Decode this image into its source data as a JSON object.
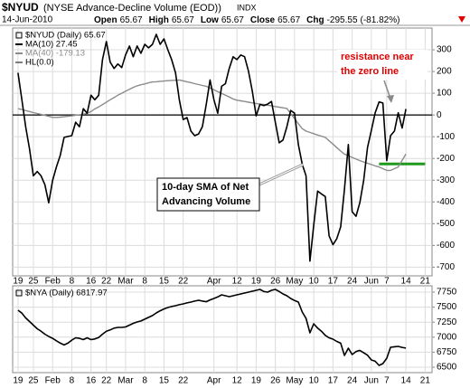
{
  "header": {
    "symbol": "$NYUD",
    "name": "(NYSE Advance-Decline Volume (EOD))",
    "exchange": "INDX",
    "date": "14-Jun-2010",
    "quote": [
      {
        "label": "Open",
        "value": 65.67
      },
      {
        "label": "High",
        "value": 65.67
      },
      {
        "label": "Low",
        "value": 65.67
      },
      {
        "label": "Close",
        "value": 65.67
      },
      {
        "label": "Chg",
        "value": -295.55
      }
    ],
    "change_pct": "(-81.82%)"
  },
  "chart_data": [
    {
      "type": "line",
      "legend_title": "$NYUD (Daily) 65.67",
      "xlim": [
        -1.4,
        107.8
      ],
      "xticks": [
        {
          "value": 0,
          "label": "19"
        },
        {
          "value": 4,
          "label": "25"
        },
        {
          "value": 9,
          "label": "Feb"
        },
        {
          "value": 14,
          "label": "8"
        },
        {
          "value": 19,
          "label": "16"
        },
        {
          "value": 23,
          "label": "22"
        },
        {
          "value": 28,
          "label": "Mar"
        },
        {
          "value": 33,
          "label": "8"
        },
        {
          "value": 38,
          "label": "15"
        },
        {
          "value": 43,
          "label": "22"
        },
        {
          "value": 51,
          "label": "Apr"
        },
        {
          "value": 57,
          "label": "12"
        },
        {
          "value": 62,
          "label": "19"
        },
        {
          "value": 67,
          "label": "26"
        },
        {
          "value": 72,
          "label": "May"
        },
        {
          "value": 77,
          "label": "10"
        },
        {
          "value": 82,
          "label": "17"
        },
        {
          "value": 87,
          "label": "24"
        },
        {
          "value": 92,
          "label": "Jun"
        },
        {
          "value": 96,
          "label": "7"
        },
        {
          "value": 101,
          "label": "14"
        },
        {
          "value": 106,
          "label": "21"
        }
      ],
      "ylim": [
        -740,
        400
      ],
      "yticks": [
        300,
        200,
        100,
        0,
        -100,
        -200,
        -300,
        -400,
        -500,
        -600,
        -700
      ],
      "grid": true,
      "series": [
        {
          "name": "MA(10) 27.45",
          "color": "#000000",
          "values": [
            194,
            70,
            -54,
            -157,
            -280,
            -260,
            -280,
            -321,
            -404,
            -301,
            -239,
            -185,
            -103,
            -99,
            -95,
            -33,
            -54,
            29,
            8,
            91,
            70,
            91,
            255,
            338,
            243,
            214,
            235,
            218,
            276,
            317,
            268,
            317,
            284,
            325,
            309,
            325,
            371,
            325,
            350,
            300,
            255,
            194,
            70,
            -21,
            -12,
            -74,
            -95,
            -87,
            -54,
            49,
            161,
            70,
            8,
            132,
            144,
            214,
            268,
            255,
            276,
            268,
            202,
            111,
            -4,
            49,
            43,
            50,
            62,
            -33,
            -128,
            -115,
            -54,
            21,
            8,
            -136,
            -227,
            -280,
            -672,
            -507,
            -350,
            -363,
            -375,
            -556,
            -597,
            -569,
            -515,
            -342,
            -136,
            -445,
            -466,
            -404,
            -300,
            -150,
            -70,
            10,
            60,
            55,
            -210,
            -95,
            -74,
            10,
            -60,
            27.45
          ]
        },
        {
          "name": "MA(40) -179.13",
          "color": "#8c8c8c",
          "values": [
            29,
            25,
            20,
            16,
            11,
            7,
            3,
            -2,
            -6,
            -11,
            -11,
            -10,
            -8,
            -6,
            -4,
            -1,
            1,
            4,
            7,
            16,
            28,
            37,
            48,
            59,
            70,
            80,
            91,
            100,
            109,
            118,
            127,
            134,
            139,
            143,
            148,
            152,
            153,
            155,
            156,
            158,
            159,
            160,
            161,
            157,
            153,
            149,
            144,
            140,
            136,
            132,
            124,
            116,
            107,
            99,
            91,
            83,
            74,
            68,
            65,
            62,
            59,
            56,
            53,
            50,
            48,
            45,
            42,
            39,
            36,
            33,
            30,
            6,
            -17,
            -40,
            -63,
            -74,
            -80,
            -86,
            -92,
            -97,
            -103,
            -119,
            -134,
            -150,
            -166,
            -180,
            -187,
            -195,
            -203,
            -210,
            -216,
            -222,
            -228,
            -234,
            -239,
            -247,
            -255,
            -255,
            -247,
            -239,
            -209,
            -179.13
          ]
        }
      ],
      "hline": {
        "name": "HL(0.0)",
        "value": 0,
        "color": "#000000"
      },
      "level": {
        "value": -225,
        "x": [
          94,
          106
        ],
        "color": "#1f9a1f"
      },
      "annotations": [
        {
          "lines": [
            "resistance near",
            "the zero line"
          ],
          "color": "#e00000"
        },
        {
          "lines": [
            "10-day SMA of Net",
            "Advancing Volume"
          ],
          "color": "#000000"
        }
      ]
    },
    {
      "type": "line",
      "legend_title": "$NYA (Daily) 6817.97",
      "xlim": [
        -1.4,
        107.8
      ],
      "xticks": [
        {
          "value": 0,
          "label": "19"
        },
        {
          "value": 4,
          "label": "25"
        },
        {
          "value": 9,
          "label": "Feb"
        },
        {
          "value": 14,
          "label": "8"
        },
        {
          "value": 19,
          "label": "16"
        },
        {
          "value": 23,
          "label": "22"
        },
        {
          "value": 28,
          "label": "Mar"
        },
        {
          "value": 33,
          "label": "8"
        },
        {
          "value": 38,
          "label": "15"
        },
        {
          "value": 43,
          "label": "22"
        },
        {
          "value": 51,
          "label": "Apr"
        },
        {
          "value": 57,
          "label": "12"
        },
        {
          "value": 62,
          "label": "19"
        },
        {
          "value": 67,
          "label": "26"
        },
        {
          "value": 72,
          "label": "May"
        },
        {
          "value": 77,
          "label": "10"
        },
        {
          "value": 82,
          "label": "17"
        },
        {
          "value": 87,
          "label": "24"
        },
        {
          "value": 92,
          "label": "Jun"
        },
        {
          "value": 96,
          "label": "7"
        },
        {
          "value": 101,
          "label": "14"
        },
        {
          "value": 106,
          "label": "21"
        }
      ],
      "ylim": [
        6410,
        7855
      ],
      "yticks": [
        7750,
        7500,
        7250,
        7000,
        6750,
        6500
      ],
      "grid": true,
      "series": [
        {
          "color": "#000000",
          "values": [
            7449,
            7400,
            7320,
            7260,
            7200,
            7140,
            7100,
            7050,
            7012,
            6980,
            6940,
            6900,
            6870,
            6900,
            6950,
            6990,
            6980,
            6960,
            6990,
            6960,
            6970,
            6995,
            7050,
            7100,
            7120,
            7150,
            7163,
            7163,
            7170,
            7200,
            7230,
            7253,
            7270,
            7300,
            7330,
            7360,
            7404,
            7440,
            7470,
            7494,
            7510,
            7524,
            7540,
            7554,
            7570,
            7584,
            7600,
            7614,
            7600,
            7590,
            7620,
            7645,
            7670,
            7705,
            7690,
            7675,
            7690,
            7705,
            7720,
            7735,
            7750,
            7765,
            7780,
            7795,
            7760,
            7750,
            7780,
            7795,
            7760,
            7720,
            7690,
            7645,
            7610,
            7584,
            7419,
            7313,
            7072,
            7223,
            7150,
            7100,
            7030,
            6990,
            6967,
            6930,
            6900,
            6696,
            6816,
            6711,
            6760,
            6780,
            6740,
            6700,
            6620,
            6600,
            6530,
            6560,
            6650,
            6831,
            6840,
            6846,
            6830,
            6817.97
          ]
        }
      ]
    }
  ]
}
